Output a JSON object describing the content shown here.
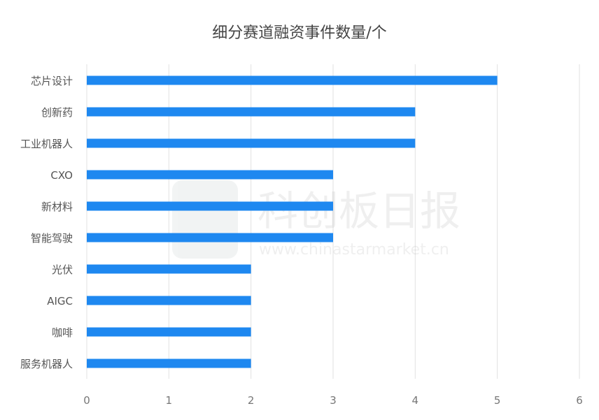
{
  "chart_data": {
    "type": "bar",
    "orientation": "horizontal",
    "title": "细分赛道融资事件数量/个",
    "categories": [
      "芯片设计",
      "创新药",
      "工业机器人",
      "CXO",
      "新材料",
      "智能驾驶",
      "光伏",
      "AIGC",
      "咖啡",
      "服务机器人"
    ],
    "values": [
      5,
      4,
      4,
      3,
      3,
      3,
      2,
      2,
      2,
      2
    ],
    "xlim": [
      0,
      6
    ],
    "xticks": [
      "0",
      "1",
      "2",
      "3",
      "4",
      "5",
      "6"
    ],
    "grid": true,
    "bar_color": "#1E88F0",
    "watermark": {
      "name": "科创板日报",
      "url": "www.chinastarmarket.cn"
    }
  }
}
